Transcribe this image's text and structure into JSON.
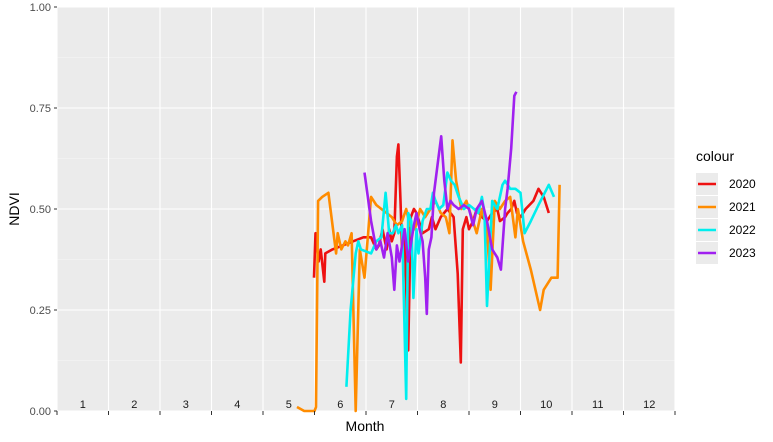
{
  "chart_data": {
    "type": "line",
    "xlabel": "Month",
    "ylabel": "NDVI",
    "xlim": [
      0,
      12
    ],
    "ylim": [
      0,
      1
    ],
    "yticks": [
      "0.00",
      "0.25",
      "0.50",
      "0.75",
      "1.00"
    ],
    "month_labels": [
      "1",
      "2",
      "3",
      "4",
      "5",
      "6",
      "7",
      "8",
      "9",
      "10",
      "11",
      "12"
    ],
    "legend_title": "colour",
    "grid": true,
    "legend_position": "right",
    "series": [
      {
        "name": "2020",
        "color": "#ee1111",
        "points": [
          [
            4.99,
            0.33
          ],
          [
            5.02,
            0.44
          ],
          [
            5.08,
            0.37
          ],
          [
            5.12,
            0.4
          ],
          [
            5.19,
            0.32
          ],
          [
            5.21,
            0.39
          ],
          [
            5.35,
            0.4
          ],
          [
            5.55,
            0.41
          ],
          [
            5.75,
            0.42
          ],
          [
            5.95,
            0.43
          ],
          [
            6.1,
            0.43
          ],
          [
            6.2,
            0.4
          ],
          [
            6.25,
            0.41
          ],
          [
            6.32,
            0.45
          ],
          [
            6.4,
            0.4
          ],
          [
            6.45,
            0.45
          ],
          [
            6.5,
            0.42
          ],
          [
            6.55,
            0.44
          ],
          [
            6.6,
            0.63
          ],
          [
            6.63,
            0.66
          ],
          [
            6.67,
            0.52
          ],
          [
            6.7,
            0.4
          ],
          [
            6.75,
            0.43
          ],
          [
            6.82,
            0.15
          ],
          [
            6.87,
            0.48
          ],
          [
            6.93,
            0.5
          ],
          [
            6.98,
            0.49
          ],
          [
            7.1,
            0.44
          ],
          [
            7.22,
            0.45
          ],
          [
            7.28,
            0.48
          ],
          [
            7.35,
            0.45
          ],
          [
            7.45,
            0.48
          ],
          [
            7.58,
            0.5
          ],
          [
            7.7,
            0.48
          ],
          [
            7.78,
            0.34
          ],
          [
            7.84,
            0.12
          ],
          [
            7.88,
            0.45
          ],
          [
            7.95,
            0.48
          ],
          [
            8.0,
            0.45
          ],
          [
            8.08,
            0.47
          ],
          [
            8.15,
            0.5
          ],
          [
            8.25,
            0.48
          ],
          [
            8.35,
            0.47
          ],
          [
            8.45,
            0.49
          ],
          [
            8.55,
            0.5
          ],
          [
            8.6,
            0.47
          ],
          [
            8.7,
            0.48
          ],
          [
            8.75,
            0.49
          ],
          [
            8.82,
            0.5
          ],
          [
            8.88,
            0.52
          ],
          [
            8.93,
            0.49
          ],
          [
            9.0,
            0.48
          ],
          [
            9.1,
            0.5
          ],
          [
            9.25,
            0.52
          ],
          [
            9.35,
            0.55
          ],
          [
            9.45,
            0.53
          ],
          [
            9.55,
            0.49
          ]
        ]
      },
      {
        "name": "2021",
        "color": "#ff8c00",
        "points": [
          [
            4.66,
            0.01
          ],
          [
            4.8,
            0.0
          ],
          [
            5.0,
            0.0
          ],
          [
            5.03,
            0.01
          ],
          [
            5.07,
            0.52
          ],
          [
            5.15,
            0.53
          ],
          [
            5.27,
            0.54
          ],
          [
            5.42,
            0.39
          ],
          [
            5.45,
            0.44
          ],
          [
            5.52,
            0.4
          ],
          [
            5.6,
            0.42
          ],
          [
            5.65,
            0.41
          ],
          [
            5.72,
            0.44
          ],
          [
            5.8,
            0.0
          ],
          [
            5.88,
            0.4
          ],
          [
            5.97,
            0.33
          ],
          [
            6.1,
            0.53
          ],
          [
            6.2,
            0.51
          ],
          [
            6.3,
            0.5
          ],
          [
            6.4,
            0.49
          ],
          [
            6.5,
            0.48
          ],
          [
            6.6,
            0.46
          ],
          [
            6.7,
            0.47
          ],
          [
            6.78,
            0.5
          ],
          [
            6.85,
            0.46
          ],
          [
            6.95,
            0.45
          ],
          [
            7.05,
            0.5
          ],
          [
            7.15,
            0.48
          ],
          [
            7.25,
            0.5
          ],
          [
            7.35,
            0.52
          ],
          [
            7.45,
            0.49
          ],
          [
            7.55,
            0.48
          ],
          [
            7.62,
            0.44
          ],
          [
            7.68,
            0.67
          ],
          [
            7.75,
            0.57
          ],
          [
            7.85,
            0.5
          ],
          [
            7.95,
            0.52
          ],
          [
            8.05,
            0.48
          ],
          [
            8.15,
            0.44
          ],
          [
            8.25,
            0.5
          ],
          [
            8.35,
            0.45
          ],
          [
            8.42,
            0.3
          ],
          [
            8.5,
            0.52
          ],
          [
            8.6,
            0.5
          ],
          [
            8.7,
            0.52
          ],
          [
            8.8,
            0.53
          ],
          [
            8.9,
            0.43
          ],
          [
            8.95,
            0.5
          ],
          [
            9.05,
            0.42
          ],
          [
            9.2,
            0.35
          ],
          [
            9.38,
            0.25
          ],
          [
            9.45,
            0.3
          ],
          [
            9.6,
            0.33
          ],
          [
            9.72,
            0.33
          ],
          [
            9.76,
            0.56
          ]
        ]
      },
      {
        "name": "2022",
        "color": "#00eeee",
        "points": [
          [
            5.62,
            0.06
          ],
          [
            5.7,
            0.25
          ],
          [
            5.8,
            0.39
          ],
          [
            5.85,
            0.42
          ],
          [
            5.9,
            0.4
          ],
          [
            6.1,
            0.39
          ],
          [
            6.2,
            0.42
          ],
          [
            6.3,
            0.43
          ],
          [
            6.38,
            0.54
          ],
          [
            6.45,
            0.44
          ],
          [
            6.52,
            0.44
          ],
          [
            6.58,
            0.46
          ],
          [
            6.63,
            0.44
          ],
          [
            6.7,
            0.46
          ],
          [
            6.78,
            0.03
          ],
          [
            6.82,
            0.49
          ],
          [
            6.88,
            0.47
          ],
          [
            6.92,
            0.28
          ],
          [
            6.98,
            0.45
          ],
          [
            7.02,
            0.39
          ],
          [
            7.1,
            0.47
          ],
          [
            7.18,
            0.5
          ],
          [
            7.25,
            0.5
          ],
          [
            7.3,
            0.54
          ],
          [
            7.35,
            0.52
          ],
          [
            7.42,
            0.5
          ],
          [
            7.5,
            0.51
          ],
          [
            7.58,
            0.59
          ],
          [
            7.65,
            0.57
          ],
          [
            7.72,
            0.56
          ],
          [
            7.8,
            0.53
          ],
          [
            7.9,
            0.5
          ],
          [
            8.0,
            0.51
          ],
          [
            8.1,
            0.5
          ],
          [
            8.18,
            0.49
          ],
          [
            8.25,
            0.53
          ],
          [
            8.3,
            0.49
          ],
          [
            8.35,
            0.26
          ],
          [
            8.45,
            0.52
          ],
          [
            8.55,
            0.5
          ],
          [
            8.65,
            0.56
          ],
          [
            8.7,
            0.57
          ],
          [
            8.8,
            0.55
          ],
          [
            8.9,
            0.55
          ],
          [
            9.0,
            0.54
          ],
          [
            9.08,
            0.44
          ],
          [
            9.2,
            0.47
          ],
          [
            9.35,
            0.51
          ],
          [
            9.55,
            0.56
          ],
          [
            9.65,
            0.53
          ]
        ]
      },
      {
        "name": "2023",
        "color": "#a020f0",
        "points": [
          [
            5.97,
            0.59
          ],
          [
            6.1,
            0.47
          ],
          [
            6.2,
            0.4
          ],
          [
            6.28,
            0.42
          ],
          [
            6.35,
            0.38
          ],
          [
            6.42,
            0.44
          ],
          [
            6.5,
            0.38
          ],
          [
            6.55,
            0.3
          ],
          [
            6.6,
            0.41
          ],
          [
            6.65,
            0.37
          ],
          [
            6.75,
            0.45
          ],
          [
            6.82,
            0.37
          ],
          [
            6.88,
            0.42
          ],
          [
            6.93,
            0.46
          ],
          [
            6.98,
            0.49
          ],
          [
            7.04,
            0.45
          ],
          [
            7.1,
            0.42
          ],
          [
            7.15,
            0.33
          ],
          [
            7.18,
            0.24
          ],
          [
            7.22,
            0.4
          ],
          [
            7.27,
            0.43
          ],
          [
            7.32,
            0.54
          ],
          [
            7.4,
            0.62
          ],
          [
            7.46,
            0.68
          ],
          [
            7.52,
            0.57
          ],
          [
            7.58,
            0.5
          ],
          [
            7.64,
            0.52
          ],
          [
            7.7,
            0.51
          ],
          [
            7.8,
            0.5
          ],
          [
            7.9,
            0.51
          ],
          [
            8.0,
            0.5
          ],
          [
            8.08,
            0.46
          ],
          [
            8.15,
            0.5
          ],
          [
            8.25,
            0.52
          ],
          [
            8.35,
            0.47
          ],
          [
            8.45,
            0.4
          ],
          [
            8.55,
            0.38
          ],
          [
            8.62,
            0.35
          ],
          [
            8.7,
            0.5
          ],
          [
            8.75,
            0.55
          ],
          [
            8.82,
            0.65
          ],
          [
            8.88,
            0.78
          ],
          [
            8.92,
            0.79
          ]
        ]
      }
    ]
  }
}
